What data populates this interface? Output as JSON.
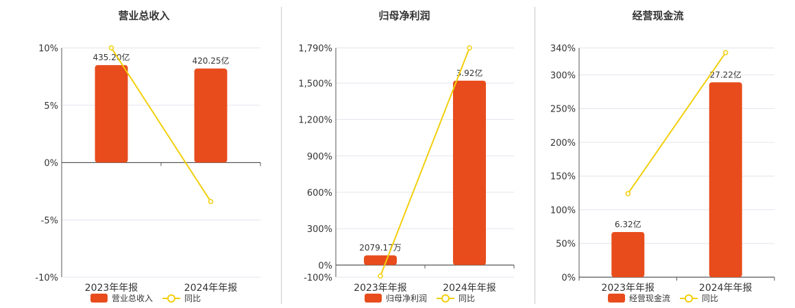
{
  "colors": {
    "bar": "#e84c1c",
    "line": "#f2cf0a",
    "grid": "#e3e3ee",
    "axis": "#555555",
    "text": "#333333"
  },
  "chart_data": [
    {
      "type": "bar",
      "title": "营业总收入",
      "categories": [
        "2023年年报",
        "2024年年报"
      ],
      "bar_series": {
        "name": "营业总收入",
        "values": [
          8.5,
          8.2
        ],
        "labels": [
          "435.20亿",
          "420.25亿"
        ]
      },
      "line_series": {
        "name": "同比",
        "values": [
          10.0,
          -3.4
        ]
      },
      "ylim": [
        -10,
        10
      ],
      "yticks": [
        -10,
        -5,
        0,
        5,
        10
      ],
      "ytick_labels": [
        "-10%",
        "-5%",
        "0%",
        "5%",
        "10%"
      ],
      "grid": true,
      "legend": "bottom"
    },
    {
      "type": "bar",
      "title": "归母净利润",
      "categories": [
        "2023年年报",
        "2024年年报"
      ],
      "bar_series": {
        "name": "归母净利润",
        "values": [
          80,
          1520
        ],
        "labels": [
          "2079.17万",
          "3.92亿"
        ]
      },
      "line_series": {
        "name": "同比",
        "values": [
          -90,
          1790
        ]
      },
      "ylim": [
        -100,
        1790
      ],
      "yticks": [
        -100,
        0,
        300,
        600,
        900,
        1200,
        1500,
        1790
      ],
      "ytick_labels": [
        "-100%",
        "0%",
        "300%",
        "600%",
        "900%",
        "1,200%",
        "1,500%",
        "1,790%"
      ],
      "grid": true,
      "legend": "bottom"
    },
    {
      "type": "bar",
      "title": "经营现金流",
      "categories": [
        "2023年年报",
        "2024年年报"
      ],
      "bar_series": {
        "name": "经营现金流",
        "values": [
          67,
          289
        ],
        "labels": [
          "6.32亿",
          "27.22亿"
        ]
      },
      "line_series": {
        "name": "同比",
        "values": [
          124,
          333
        ]
      },
      "ylim": [
        0,
        340
      ],
      "yticks": [
        0,
        50,
        100,
        150,
        200,
        250,
        300,
        340
      ],
      "ytick_labels": [
        "0%",
        "50%",
        "100%",
        "150%",
        "200%",
        "250%",
        "300%",
        "340%"
      ],
      "grid": true,
      "legend": "bottom"
    }
  ]
}
